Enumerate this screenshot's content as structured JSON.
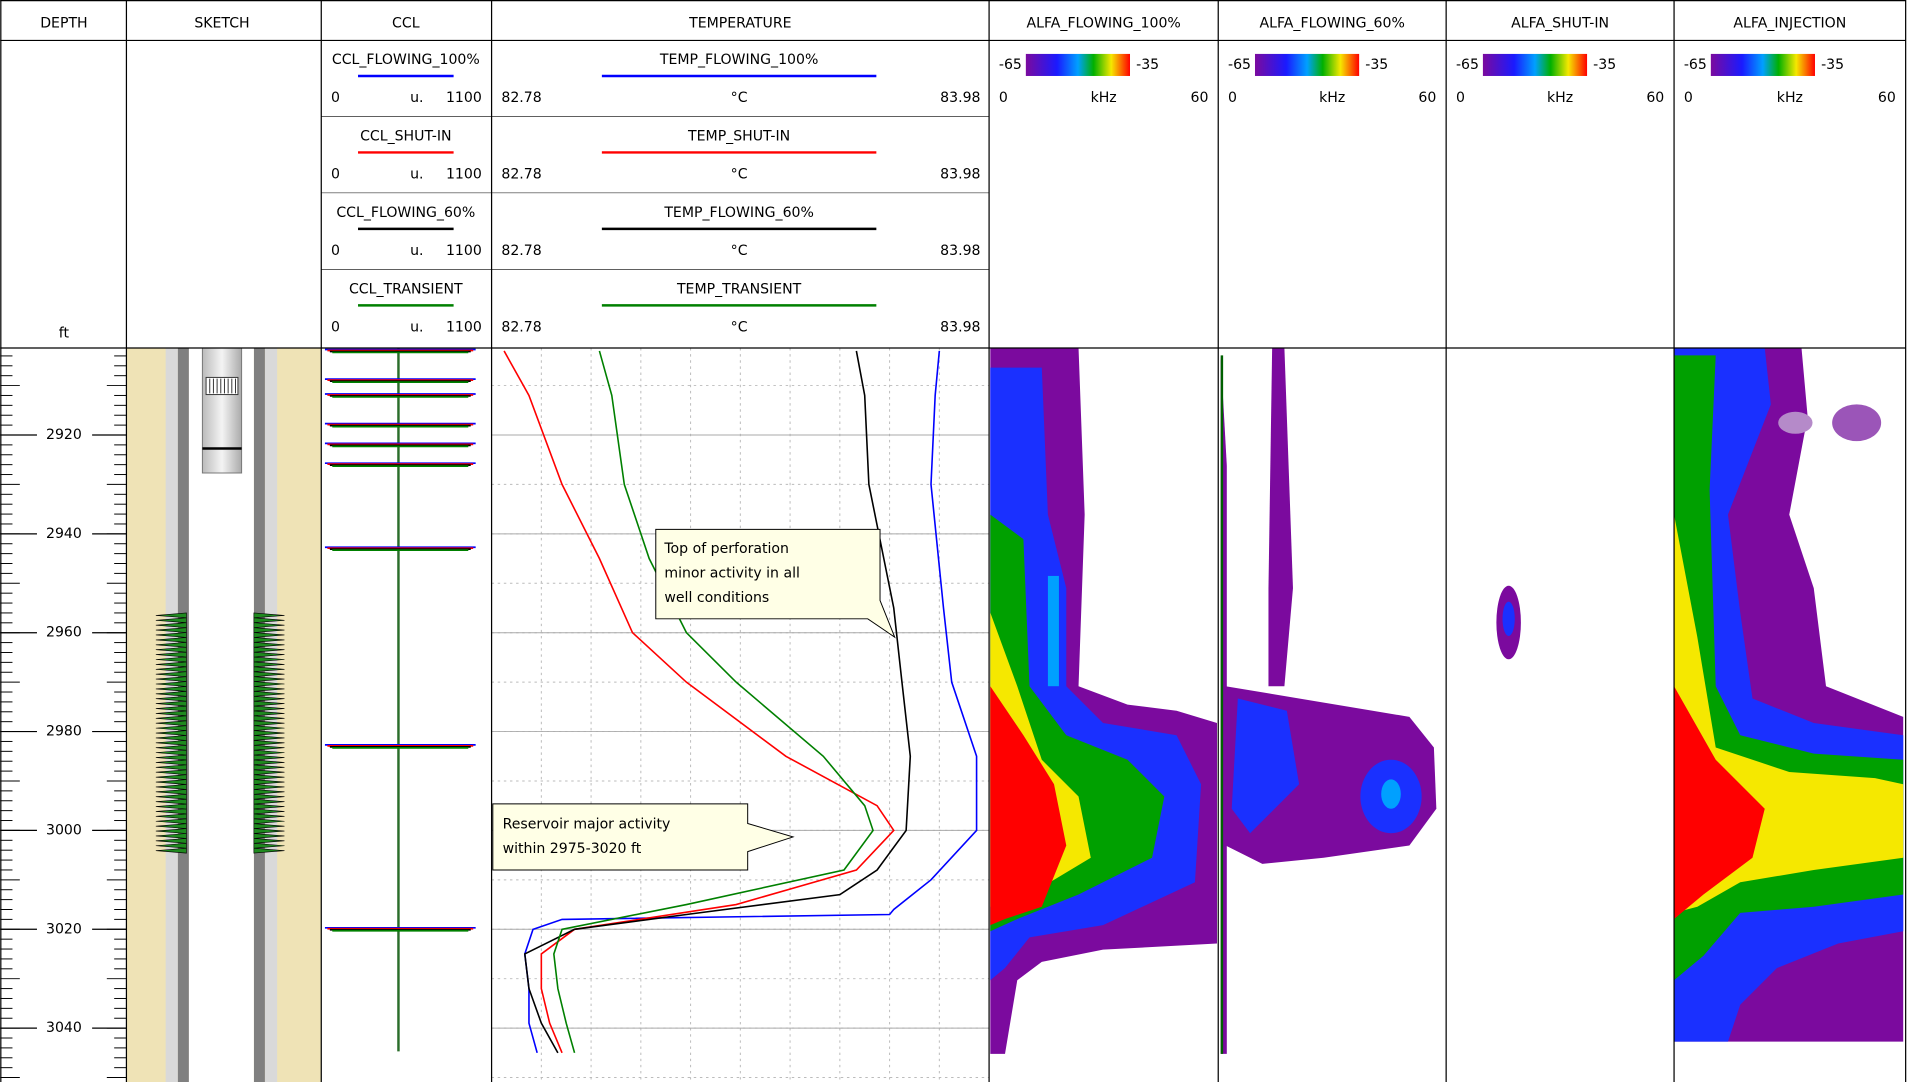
{
  "tracks": {
    "depth": {
      "title": "DEPTH",
      "unit": "ft",
      "range": [
        2902.4,
        3050.9
      ],
      "ticks": [
        2920,
        2940,
        2960,
        2980,
        3000,
        3020,
        3040
      ],
      "minor_step": 2
    },
    "sketch": {
      "title": "SKETCH",
      "perforation": [
        2956,
        3004
      ]
    },
    "ccl": {
      "title": "CCL",
      "curves": [
        {
          "name": "CCL_FLOWING_100%",
          "color": "#0000ff",
          "min": 0,
          "unit": "u.",
          "max": 1100
        },
        {
          "name": "CCL_SHUT-IN",
          "color": "#ff0000",
          "min": 0,
          "unit": "u.",
          "max": 1100
        },
        {
          "name": "CCL_FLOWING_60%",
          "color": "#000000",
          "min": 0,
          "unit": "u.",
          "max": 1100
        },
        {
          "name": "CCL_TRANSIENT",
          "color": "#008000",
          "min": 0,
          "unit": "u.",
          "max": 1100
        }
      ],
      "collars": [
        2903,
        2909,
        2912,
        2918,
        2922,
        2926,
        2943,
        2983,
        3020
      ]
    },
    "temperature": {
      "title": "TEMPERATURE",
      "grid_step": 10,
      "curves": [
        {
          "name": "TEMP_FLOWING_100%",
          "color": "#0000ff",
          "min": 82.78,
          "unit": "°C",
          "max": 83.98,
          "depth": [
            2903,
            2912,
            2930,
            2955,
            2970,
            2985,
            3000,
            3010,
            3016,
            3017,
            3018,
            3020,
            3025,
            3032,
            3039,
            3045
          ],
          "values": [
            83.86,
            83.85,
            83.84,
            83.87,
            83.89,
            83.95,
            83.95,
            83.84,
            83.75,
            83.74,
            82.95,
            82.88,
            82.86,
            82.87,
            82.87,
            82.89
          ]
        },
        {
          "name": "TEMP_SHUT-IN",
          "color": "#ff0000",
          "min": 82.78,
          "unit": "°C",
          "max": 83.98,
          "depth": [
            2903,
            2912,
            2930,
            2945,
            2960,
            2970,
            2985,
            2995,
            3000,
            3008,
            3015,
            3020,
            3025,
            3032,
            3039,
            3045
          ],
          "values": [
            82.81,
            82.87,
            82.95,
            83.04,
            83.12,
            83.25,
            83.49,
            83.71,
            83.75,
            83.66,
            83.37,
            82.98,
            82.9,
            82.9,
            82.92,
            82.95
          ]
        },
        {
          "name": "TEMP_FLOWING_60%",
          "color": "#000000",
          "min": 82.78,
          "unit": "°C",
          "max": 83.98,
          "depth": [
            2903,
            2912,
            2930,
            2955,
            2970,
            2985,
            3000,
            3008,
            3013,
            3017,
            3020,
            3025,
            3032,
            3039,
            3045
          ],
          "values": [
            83.66,
            83.68,
            83.69,
            83.75,
            83.77,
            83.79,
            83.78,
            83.71,
            83.62,
            83.25,
            82.98,
            82.86,
            82.87,
            82.9,
            82.94
          ]
        },
        {
          "name": "TEMP_TRANSIENT",
          "color": "#008000",
          "min": 82.78,
          "unit": "°C",
          "max": 83.98,
          "depth": [
            2903,
            2912,
            2930,
            2945,
            2960,
            2970,
            2985,
            2995,
            3000,
            3008,
            3015,
            3020,
            3025,
            3032,
            3039,
            3045
          ],
          "values": [
            83.04,
            83.07,
            83.1,
            83.16,
            83.25,
            83.37,
            83.58,
            83.68,
            83.7,
            83.63,
            83.25,
            82.95,
            82.93,
            82.94,
            82.96,
            82.98
          ]
        }
      ],
      "annotations": [
        {
          "lines": [
            "Top of perforation",
            "minor activity in all",
            "well conditions"
          ]
        },
        {
          "lines": [
            "Reservoir major activity",
            "within 2975-3020 ft"
          ]
        }
      ]
    },
    "spectra": [
      {
        "title": "ALFA_FLOWING_100%",
        "color_min": -65,
        "color_max": -35,
        "freq_min": 0,
        "unit": "kHz",
        "freq_max": 60
      },
      {
        "title": "ALFA_FLOWING_60%",
        "color_min": -65,
        "color_max": -35,
        "freq_min": 0,
        "unit": "kHz",
        "freq_max": 60
      },
      {
        "title": "ALFA_SHUT-IN",
        "color_min": -65,
        "color_max": -35,
        "freq_min": 0,
        "unit": "kHz",
        "freq_max": 60
      },
      {
        "title": "ALFA_INJECTION",
        "color_min": -65,
        "color_max": -35,
        "freq_min": 0,
        "unit": "kHz",
        "freq_max": 60
      }
    ]
  }
}
